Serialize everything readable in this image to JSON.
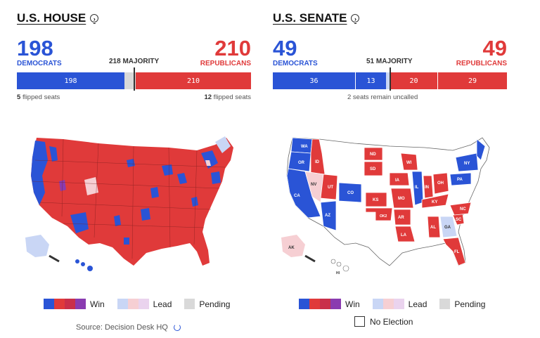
{
  "house": {
    "title": "U.S. HOUSE",
    "dem_count": "198",
    "dem_label": "DEMOCRATS",
    "rep_count": "210",
    "rep_label": "REPUBLICANS",
    "majority_label": "218 MAJORITY",
    "bar_dem": "198",
    "bar_rep": "210",
    "dem_flipped_num": "5",
    "dem_flipped_text": "flipped seats",
    "rep_flipped_num": "12",
    "rep_flipped_text": "flipped seats"
  },
  "senate": {
    "title": "U.S. SENATE",
    "dem_count": "49",
    "dem_label": "DEMOCRATS",
    "rep_count": "49",
    "rep_label": "REPUBLICANS",
    "majority_label": "51 MAJORITY",
    "bar_dem_holdover": "36",
    "bar_dem_new": "13",
    "bar_rep_new": "20",
    "bar_rep_holdover": "29",
    "uncalled_text": "2 seats remain uncalled",
    "state_labels": [
      "WA",
      "OR",
      "CA",
      "ID",
      "NV",
      "UT",
      "AZ",
      "CO",
      "ND",
      "SD",
      "KS",
      "OK1",
      "OK2",
      "IA",
      "MO",
      "AR",
      "LA",
      "WI",
      "IL",
      "IN",
      "OH",
      "KY",
      "AL",
      "GA",
      "FL",
      "SC",
      "NC",
      "PA",
      "NY",
      "AK",
      "HI"
    ]
  },
  "legend": {
    "win": "Win",
    "lead": "Lead",
    "pending": "Pending",
    "no_election": "No Election"
  },
  "source": "Source: Decision Desk HQ",
  "colors": {
    "dem": "#2a54d6",
    "rep": "#e03a3a",
    "other": "#8a3bb0",
    "dem_lead": "#c9d6f5",
    "rep_lead": "#f6cfd3",
    "pending": "#d9d9d9"
  }
}
